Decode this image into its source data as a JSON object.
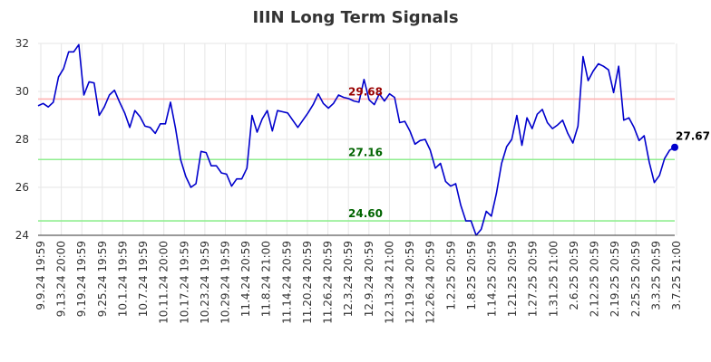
{
  "chart_data": {
    "type": "line",
    "title": "IIIN Long Term Signals",
    "xlabel": "",
    "ylabel": "",
    "ylim": [
      24,
      32
    ],
    "yticks": [
      24,
      26,
      28,
      30,
      32
    ],
    "grid": true,
    "x_tick_labels": [
      "9.9.24 19:59",
      "9.13.24 20:00",
      "9.19.24 19:59",
      "9.25.24 19:59",
      "10.1.24 19:59",
      "10.7.24 19:59",
      "10.11.24 20:00",
      "10.17.24 19:59",
      "10.23.24 19:59",
      "10.29.24 19:59",
      "11.4.24 20:59",
      "11.8.24 21:00",
      "11.14.24 20:59",
      "11.20.24 20:59",
      "11.26.24 20:59",
      "12.3.24 20:59",
      "12.9.24 20:59",
      "12.13.24 21:00",
      "12.19.24 20:59",
      "12.26.24 20:59",
      "1.2.25 20:59",
      "1.8.25 20:59",
      "1.14.25 20:59",
      "1.21.25 20:59",
      "1.27.25 20:59",
      "1.31.25 21:00",
      "2.6.25 20:59",
      "2.12.25 20:59",
      "2.19.25 20:59",
      "2.25.25 20:59",
      "3.3.25 20:59",
      "3.7.25 21:00"
    ],
    "series": [
      {
        "color": "#0000cc",
        "values": [
          29.4,
          29.5,
          29.35,
          29.55,
          30.6,
          30.95,
          31.65,
          31.65,
          31.95,
          29.85,
          30.4,
          30.35,
          29.0,
          29.35,
          29.85,
          30.05,
          29.55,
          29.1,
          28.5,
          29.2,
          28.95,
          28.55,
          28.5,
          28.25,
          28.65,
          28.65,
          29.55,
          28.45,
          27.15,
          26.45,
          26.0,
          26.15,
          27.5,
          27.45,
          26.9,
          26.9,
          26.6,
          26.55,
          26.05,
          26.35,
          26.35,
          26.8,
          29.0,
          28.3,
          28.85,
          29.2,
          28.35,
          29.2,
          29.15,
          29.1,
          28.8,
          28.5,
          28.8,
          29.1,
          29.45,
          29.9,
          29.5,
          29.3,
          29.5,
          29.85,
          29.75,
          29.7,
          29.6,
          29.55,
          30.5,
          29.65,
          29.45,
          29.9,
          29.6,
          29.9,
          29.75,
          28.7,
          28.75,
          28.35,
          27.8,
          27.95,
          28.0,
          27.55,
          26.8,
          27.0,
          26.25,
          26.05,
          26.15,
          25.25,
          24.6,
          24.6,
          24.0,
          24.25,
          25.0,
          24.8,
          25.75,
          27.0,
          27.7,
          28.0,
          29.0,
          27.75,
          28.9,
          28.45,
          29.05,
          29.25,
          28.7,
          28.45,
          28.6,
          28.8,
          28.25,
          27.85,
          28.55,
          31.45,
          30.45,
          30.85,
          31.15,
          31.05,
          30.9,
          29.95,
          31.05,
          28.8,
          28.9,
          28.5,
          27.95,
          28.15,
          27.05,
          26.2,
          26.5,
          27.2,
          27.55,
          27.67
        ]
      }
    ],
    "horizontal_lines": [
      {
        "value": 29.68,
        "label": "29.68",
        "line_color": "#ffb3b3",
        "label_color": "#990000"
      },
      {
        "value": 27.16,
        "label": "27.16",
        "line_color": "#90ee90",
        "label_color": "#006400"
      },
      {
        "value": 24.6,
        "label": "24.60",
        "line_color": "#90ee90",
        "label_color": "#006400"
      }
    ],
    "last_point": {
      "value": 27.67,
      "label": "27.67",
      "color": "#0000cc"
    }
  }
}
